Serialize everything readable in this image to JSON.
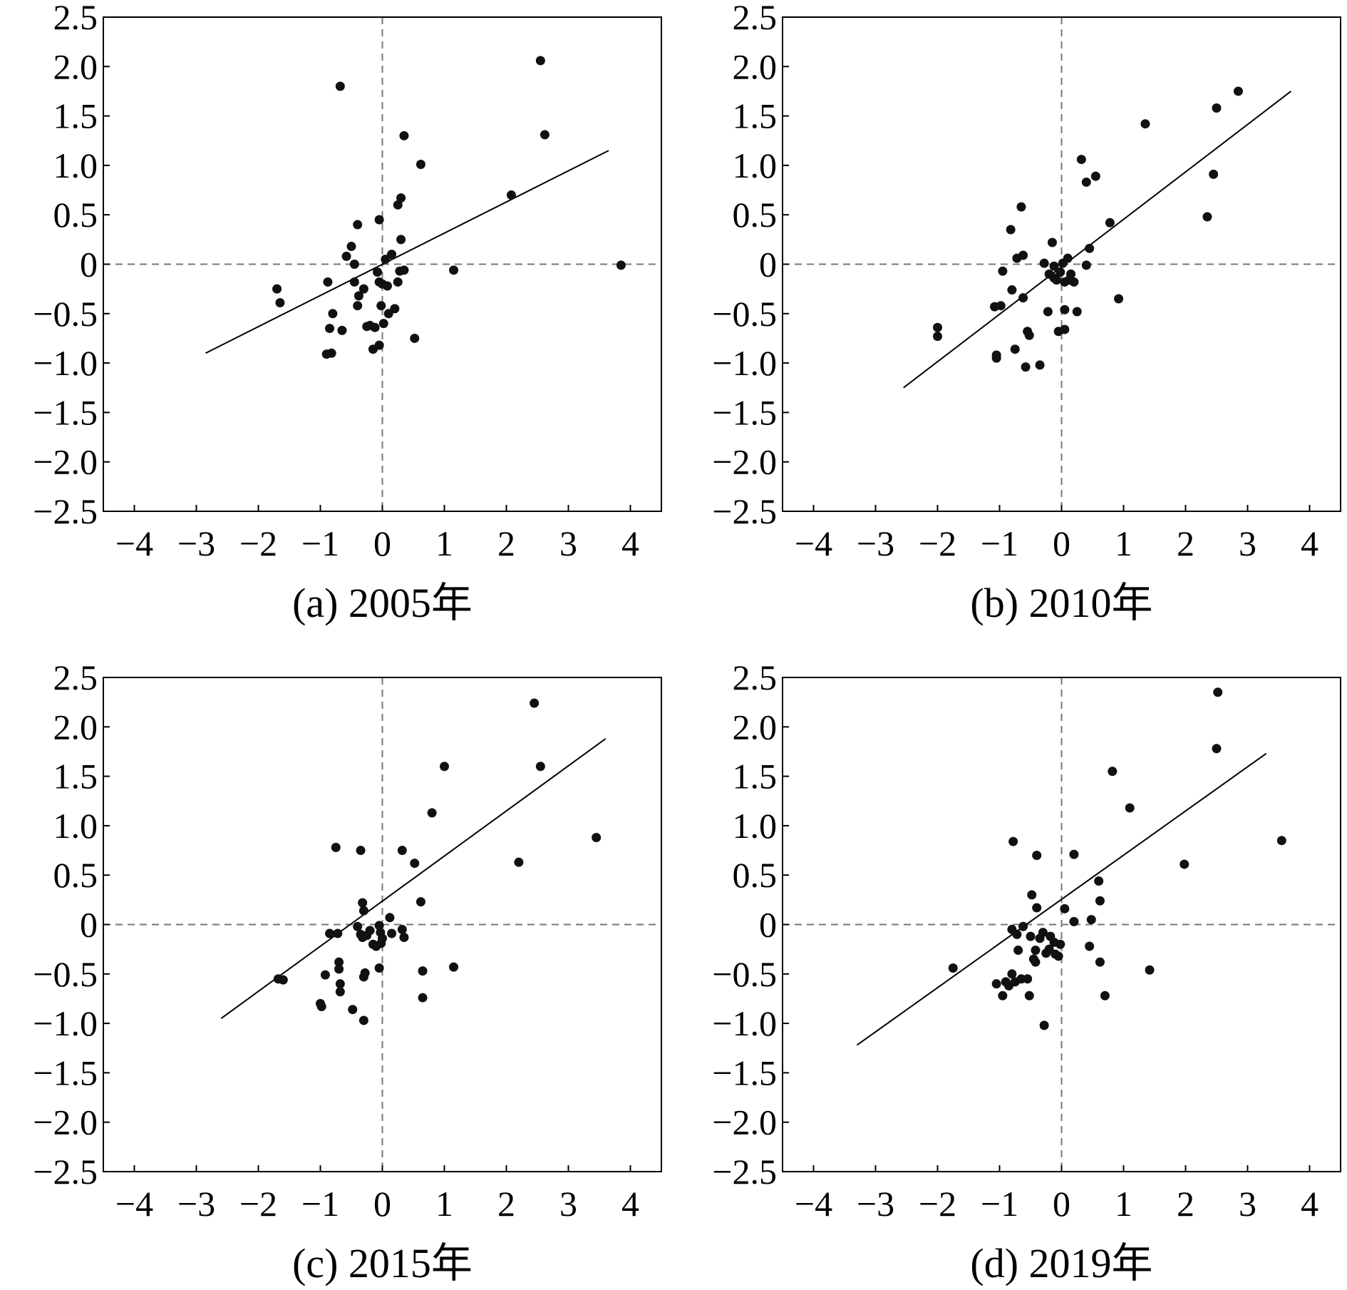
{
  "chart_data": [
    {
      "type": "scatter",
      "caption": "(a) 2005年",
      "xlim": [
        -4.5,
        4.5
      ],
      "ylim": [
        -2.5,
        2.5
      ],
      "xticks": [
        -4,
        -3,
        -2,
        -1,
        0,
        1,
        2,
        3,
        4
      ],
      "xtick_labels": [
        "−4",
        "−3",
        "−2",
        "−1",
        "0",
        "1",
        "2",
        "3",
        "4"
      ],
      "yticks": [
        2.5,
        2.0,
        1.5,
        1.0,
        0.5,
        0,
        -0.5,
        -1.0,
        -1.5,
        -2.0,
        -2.5
      ],
      "ytick_labels": [
        "2.5",
        "2.0",
        "1.5",
        "1.0",
        "0.5",
        "0",
        "−0.5",
        "−1.0",
        "−1.5",
        "−2.0",
        "−2.5"
      ],
      "reference_lines": {
        "x": 0,
        "y": 0,
        "style": "dashed"
      },
      "fit_line": {
        "x": [
          -2.85,
          3.65
        ],
        "y": [
          -0.9,
          1.15
        ]
      },
      "points": [
        [
          -1.7,
          -0.25
        ],
        [
          -1.65,
          -0.39
        ],
        [
          -0.68,
          1.8
        ],
        [
          -0.58,
          0.08
        ],
        [
          -0.5,
          0.18
        ],
        [
          -0.45,
          0.0
        ],
        [
          -0.45,
          -0.18
        ],
        [
          -0.88,
          -0.18
        ],
        [
          -0.4,
          0.4
        ],
        [
          -0.4,
          -0.42
        ],
        [
          -0.38,
          -0.32
        ],
        [
          -0.8,
          -0.5
        ],
        [
          -0.85,
          -0.65
        ],
        [
          -0.65,
          -0.67
        ],
        [
          -0.9,
          -0.91
        ],
        [
          -0.82,
          -0.9
        ],
        [
          -0.3,
          -0.25
        ],
        [
          -0.25,
          -0.63
        ],
        [
          -0.2,
          -0.62
        ],
        [
          -0.15,
          -0.86
        ],
        [
          -0.12,
          -0.64
        ],
        [
          -0.05,
          -0.82
        ],
        [
          -0.08,
          -0.08
        ],
        [
          -0.05,
          -0.18
        ],
        [
          -0.02,
          -0.42
        ],
        [
          0.0,
          -0.2
        ],
        [
          0.05,
          0.05
        ],
        [
          0.02,
          -0.6
        ],
        [
          0.08,
          -0.22
        ],
        [
          0.1,
          -0.5
        ],
        [
          0.15,
          0.1
        ],
        [
          0.2,
          -0.45
        ],
        [
          0.25,
          -0.18
        ],
        [
          0.28,
          -0.07
        ],
        [
          0.25,
          0.6
        ],
        [
          0.3,
          0.67
        ],
        [
          0.3,
          0.25
        ],
        [
          0.35,
          -0.06
        ],
        [
          0.35,
          1.3
        ],
        [
          0.62,
          1.01
        ],
        [
          0.52,
          -0.75
        ],
        [
          1.15,
          -0.06
        ],
        [
          2.08,
          0.7
        ],
        [
          2.55,
          2.06
        ],
        [
          2.62,
          1.31
        ],
        [
          3.85,
          -0.01
        ],
        [
          -0.05,
          0.45
        ]
      ]
    },
    {
      "type": "scatter",
      "caption": "(b) 2010年",
      "xlim": [
        -4.5,
        4.5
      ],
      "ylim": [
        -2.5,
        2.5
      ],
      "xticks": [
        -4,
        -3,
        -2,
        -1,
        0,
        1,
        2,
        3,
        4
      ],
      "xtick_labels": [
        "−4",
        "−3",
        "−2",
        "−1",
        "0",
        "1",
        "2",
        "3",
        "4"
      ],
      "yticks": [
        2.5,
        2.0,
        1.5,
        1.0,
        0.5,
        0,
        -0.5,
        -1.0,
        -1.5,
        -2.0,
        -2.5
      ],
      "ytick_labels": [
        "2.5",
        "2.0",
        "1.5",
        "1.0",
        "0.5",
        "0",
        "−0.5",
        "−1.0",
        "−1.5",
        "−2.0",
        "−2.5"
      ],
      "reference_lines": {
        "x": 0,
        "y": 0,
        "style": "dashed"
      },
      "fit_line": {
        "x": [
          -2.55,
          3.7
        ],
        "y": [
          -1.25,
          1.75
        ]
      },
      "points": [
        [
          -2.0,
          -0.64
        ],
        [
          -2.0,
          -0.73
        ],
        [
          -1.08,
          -0.43
        ],
        [
          -1.05,
          -0.92
        ],
        [
          -1.05,
          -0.95
        ],
        [
          -0.98,
          -0.42
        ],
        [
          -0.95,
          -0.07
        ],
        [
          -0.82,
          0.35
        ],
        [
          -0.8,
          -0.26
        ],
        [
          -0.75,
          -0.86
        ],
        [
          -0.72,
          0.06
        ],
        [
          -0.65,
          0.58
        ],
        [
          -0.62,
          0.09
        ],
        [
          -0.62,
          -0.34
        ],
        [
          -0.58,
          -1.04
        ],
        [
          -0.55,
          -0.68
        ],
        [
          -0.52,
          -0.72
        ],
        [
          -0.35,
          -1.02
        ],
        [
          -0.28,
          0.01
        ],
        [
          -0.22,
          -0.48
        ],
        [
          -0.2,
          -0.1
        ],
        [
          -0.15,
          0.22
        ],
        [
          -0.12,
          -0.02
        ],
        [
          -0.12,
          -0.14
        ],
        [
          -0.08,
          -0.16
        ],
        [
          -0.05,
          -0.68
        ],
        [
          -0.02,
          -0.08
        ],
        [
          0.02,
          0.01
        ],
        [
          0.05,
          -0.46
        ],
        [
          0.05,
          -0.18
        ],
        [
          0.05,
          -0.66
        ],
        [
          0.1,
          0.06
        ],
        [
          0.12,
          -0.16
        ],
        [
          0.15,
          -0.1
        ],
        [
          0.2,
          -0.18
        ],
        [
          0.25,
          -0.48
        ],
        [
          0.32,
          1.06
        ],
        [
          0.4,
          0.83
        ],
        [
          0.4,
          -0.01
        ],
        [
          0.45,
          0.16
        ],
        [
          0.55,
          0.89
        ],
        [
          0.78,
          0.42
        ],
        [
          0.92,
          -0.35
        ],
        [
          1.35,
          1.42
        ],
        [
          2.35,
          0.48
        ],
        [
          2.45,
          0.91
        ],
        [
          2.5,
          1.58
        ],
        [
          2.85,
          1.75
        ]
      ]
    },
    {
      "type": "scatter",
      "caption": "(c) 2015年",
      "xlim": [
        -4.5,
        4.5
      ],
      "ylim": [
        -2.5,
        2.5
      ],
      "xticks": [
        -4,
        -3,
        -2,
        -1,
        0,
        1,
        2,
        3,
        4
      ],
      "xtick_labels": [
        "−4",
        "−3",
        "−2",
        "−1",
        "0",
        "1",
        "2",
        "3",
        "4"
      ],
      "yticks": [
        2.5,
        2.0,
        1.5,
        1.0,
        0.5,
        0,
        -0.5,
        -1.0,
        -1.5,
        -2.0,
        -2.5
      ],
      "ytick_labels": [
        "2.5",
        "2.0",
        "1.5",
        "1.0",
        "0.5",
        "0",
        "−0.5",
        "−1.0",
        "−1.5",
        "−2.0",
        "−2.5"
      ],
      "reference_lines": {
        "x": 0,
        "y": 0,
        "style": "dashed"
      },
      "fit_line": {
        "x": [
          -2.6,
          3.6
        ],
        "y": [
          -0.95,
          1.88
        ]
      },
      "points": [
        [
          -1.68,
          -0.55
        ],
        [
          -1.6,
          -0.56
        ],
        [
          -1.0,
          -0.8
        ],
        [
          -0.98,
          -0.83
        ],
        [
          -0.92,
          -0.51
        ],
        [
          -0.85,
          -0.09
        ],
        [
          -0.75,
          0.78
        ],
        [
          -0.72,
          -0.09
        ],
        [
          -0.7,
          -0.38
        ],
        [
          -0.7,
          -0.45
        ],
        [
          -0.68,
          -0.6
        ],
        [
          -0.68,
          -0.68
        ],
        [
          -0.48,
          -0.86
        ],
        [
          -0.4,
          -0.02
        ],
        [
          -0.35,
          -0.1
        ],
        [
          -0.35,
          0.75
        ],
        [
          -0.32,
          -0.13
        ],
        [
          -0.32,
          0.22
        ],
        [
          -0.3,
          0.14
        ],
        [
          -0.3,
          -0.97
        ],
        [
          -0.3,
          -0.53
        ],
        [
          -0.28,
          -0.49
        ],
        [
          -0.25,
          -0.11
        ],
        [
          -0.2,
          -0.06
        ],
        [
          -0.15,
          -0.2
        ],
        [
          -0.1,
          -0.22
        ],
        [
          -0.05,
          -0.44
        ],
        [
          -0.05,
          -0.01
        ],
        [
          -0.03,
          -0.08
        ],
        [
          -0.02,
          -0.19
        ],
        [
          0.0,
          -0.14
        ],
        [
          0.12,
          0.07
        ],
        [
          0.15,
          -0.09
        ],
        [
          0.32,
          -0.05
        ],
        [
          0.35,
          -0.13
        ],
        [
          0.32,
          0.75
        ],
        [
          0.52,
          0.62
        ],
        [
          0.62,
          0.23
        ],
        [
          0.65,
          -0.47
        ],
        [
          0.65,
          -0.74
        ],
        [
          0.8,
          1.13
        ],
        [
          1.0,
          1.6
        ],
        [
          1.15,
          -0.43
        ],
        [
          2.2,
          0.63
        ],
        [
          2.45,
          2.24
        ],
        [
          2.55,
          1.6
        ],
        [
          3.45,
          0.88
        ]
      ]
    },
    {
      "type": "scatter",
      "caption": "(d) 2019年",
      "xlim": [
        -4.5,
        4.5
      ],
      "ylim": [
        -2.5,
        2.5
      ],
      "xticks": [
        -4,
        -3,
        -2,
        -1,
        0,
        1,
        2,
        3,
        4
      ],
      "xtick_labels": [
        "−4",
        "−3",
        "−2",
        "−1",
        "0",
        "1",
        "2",
        "3",
        "4"
      ],
      "yticks": [
        2.5,
        2.0,
        1.5,
        1.0,
        0.5,
        0,
        -0.5,
        -1.0,
        -1.5,
        -2.0,
        -2.5
      ],
      "ytick_labels": [
        "2.5",
        "2.0",
        "1.5",
        "1.0",
        "0.5",
        "0",
        "−0.5",
        "−1.0",
        "−1.5",
        "−2.0",
        "−2.5"
      ],
      "reference_lines": {
        "x": 0,
        "y": 0,
        "style": "dashed"
      },
      "fit_line": {
        "x": [
          -3.3,
          3.3
        ],
        "y": [
          -1.22,
          1.73
        ]
      },
      "points": [
        [
          -1.75,
          -0.44
        ],
        [
          -1.05,
          -0.6
        ],
        [
          -0.95,
          -0.72
        ],
        [
          -0.9,
          -0.58
        ],
        [
          -0.85,
          -0.62
        ],
        [
          -0.8,
          -0.05
        ],
        [
          -0.8,
          -0.5
        ],
        [
          -0.78,
          0.84
        ],
        [
          -0.75,
          -0.58
        ],
        [
          -0.72,
          -0.1
        ],
        [
          -0.7,
          -0.26
        ],
        [
          -0.65,
          -0.55
        ],
        [
          -0.62,
          -0.02
        ],
        [
          -0.55,
          -0.55
        ],
        [
          -0.52,
          -0.72
        ],
        [
          -0.5,
          -0.12
        ],
        [
          -0.48,
          0.3
        ],
        [
          -0.45,
          -0.35
        ],
        [
          -0.42,
          -0.26
        ],
        [
          -0.42,
          -0.38
        ],
        [
          -0.4,
          0.7
        ],
        [
          -0.4,
          0.17
        ],
        [
          -0.35,
          -0.14
        ],
        [
          -0.3,
          -0.08
        ],
        [
          -0.28,
          -1.02
        ],
        [
          -0.25,
          -0.29
        ],
        [
          -0.2,
          -0.25
        ],
        [
          -0.18,
          -0.12
        ],
        [
          -0.12,
          -0.18
        ],
        [
          -0.1,
          -0.3
        ],
        [
          -0.05,
          -0.32
        ],
        [
          -0.02,
          -0.2
        ],
        [
          0.05,
          0.16
        ],
        [
          0.2,
          0.71
        ],
        [
          0.2,
          0.03
        ],
        [
          0.45,
          -0.22
        ],
        [
          0.48,
          0.05
        ],
        [
          0.6,
          0.44
        ],
        [
          0.62,
          0.24
        ],
        [
          0.62,
          -0.38
        ],
        [
          0.7,
          -0.72
        ],
        [
          0.82,
          1.55
        ],
        [
          1.1,
          1.18
        ],
        [
          1.42,
          -0.46
        ],
        [
          1.98,
          0.61
        ],
        [
          2.5,
          1.78
        ],
        [
          2.52,
          2.35
        ],
        [
          3.55,
          0.85
        ]
      ]
    }
  ]
}
